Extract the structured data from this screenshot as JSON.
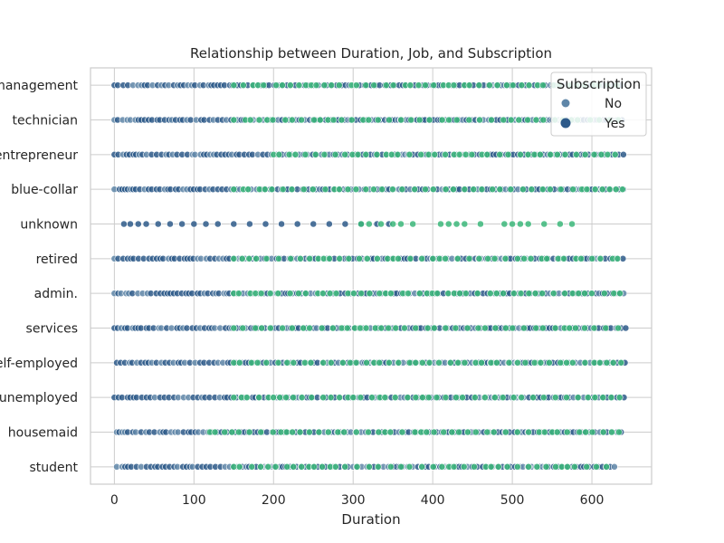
{
  "chart_data": {
    "type": "scatter",
    "title": "Relationship between Duration, Job, and Subscription",
    "xlabel": "Duration",
    "ylabel": "",
    "xlim": [
      -30,
      675
    ],
    "xticks": [
      0,
      100,
      200,
      300,
      400,
      500,
      600
    ],
    "categories": [
      "management",
      "technician",
      "entrepreneur",
      "blue-collar",
      "unknown",
      "retired",
      "admin.",
      "services",
      "self-employed",
      "unemployed",
      "housemaid",
      "student"
    ],
    "grid": true,
    "legend": {
      "title": "Subscription",
      "placement": "top-right",
      "entries": [
        "No",
        "Yes"
      ]
    },
    "colors": {
      "No": "#5f86a8",
      "Yes": "#2e5a8a",
      "green": "#3cb77a",
      "grid": "#cccccc",
      "axis": "#cccccc"
    },
    "series": [
      {
        "name": "No",
        "points": [
          {
            "y": "management",
            "x_range": [
              0,
              640
            ]
          },
          {
            "y": "technician",
            "x_range": [
              0,
              640
            ]
          },
          {
            "y": "entrepreneur",
            "x_range": [
              0,
              643
            ]
          },
          {
            "y": "blue-collar",
            "x_range": [
              0,
              643
            ]
          },
          {
            "y": "unknown",
            "x_values": [
              12,
              20,
              30,
              40,
              55,
              70,
              85,
              100,
              115,
              130,
              150,
              170,
              190,
              210,
              230,
              250,
              270,
              290,
              310,
              330,
              345
            ]
          },
          {
            "y": "retired",
            "x_range": [
              0,
              642
            ]
          },
          {
            "y": "admin.",
            "x_range": [
              0,
              643
            ]
          },
          {
            "y": "services",
            "x_range": [
              0,
              643
            ]
          },
          {
            "y": "self-employed",
            "x_range": [
              3,
              643
            ]
          },
          {
            "y": "unemployed",
            "x_range": [
              0,
              642
            ]
          },
          {
            "y": "housemaid",
            "x_range": [
              3,
              642
            ]
          },
          {
            "y": "student",
            "x_range": [
              3,
              630
            ]
          }
        ]
      },
      {
        "name": "Yes",
        "points": [
          {
            "y": "management",
            "x_range": [
              150,
              640
            ]
          },
          {
            "y": "technician",
            "x_range": [
              150,
              640
            ]
          },
          {
            "y": "entrepreneur",
            "x_range": [
              200,
              640
            ]
          },
          {
            "y": "blue-collar",
            "x_range": [
              150,
              640
            ]
          },
          {
            "y": "unknown",
            "x_values": [
              310,
              320,
              335,
              350,
              360,
              375,
              410,
              420,
              430,
              440,
              460,
              490,
              500,
              510,
              520,
              540,
              560,
              575
            ]
          },
          {
            "y": "retired",
            "x_range": [
              150,
              640
            ]
          },
          {
            "y": "admin.",
            "x_range": [
              150,
              640
            ]
          },
          {
            "y": "services",
            "x_range": [
              150,
              640
            ]
          },
          {
            "y": "self-employed",
            "x_range": [
              150,
              640
            ]
          },
          {
            "y": "unemployed",
            "x_range": [
              150,
              640
            ]
          },
          {
            "y": "housemaid",
            "x_range": [
              120,
              640
            ]
          },
          {
            "y": "student",
            "x_range": [
              150,
              625
            ]
          }
        ]
      }
    ]
  }
}
